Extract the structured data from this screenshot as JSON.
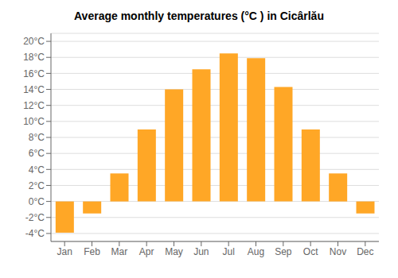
{
  "chart_data": {
    "type": "bar",
    "title": "Average monthly temperatures (°C ) in Cicârlău",
    "categories": [
      "Jan",
      "Feb",
      "Mar",
      "Apr",
      "May",
      "Jun",
      "Jul",
      "Aug",
      "Sep",
      "Oct",
      "Nov",
      "Dec"
    ],
    "values": [
      -3.9,
      -1.5,
      3.5,
      9.0,
      14.0,
      16.5,
      18.5,
      17.9,
      14.3,
      9.0,
      3.5,
      -1.5
    ],
    "color": "#FFA726",
    "ylim": [
      -5,
      21
    ],
    "yticks": [
      {
        "value": -4,
        "label": "-4°C"
      },
      {
        "value": -2,
        "label": "-2°C"
      },
      {
        "value": 0,
        "label": "0°C"
      },
      {
        "value": 2,
        "label": "2°C"
      },
      {
        "value": 4,
        "label": "4°C"
      },
      {
        "value": 6,
        "label": "6°C"
      },
      {
        "value": 8,
        "label": "8°C"
      },
      {
        "value": 10,
        "label": "10°C"
      },
      {
        "value": 12,
        "label": "12°C"
      },
      {
        "value": 14,
        "label": "14°C"
      },
      {
        "value": 16,
        "label": "16°C"
      },
      {
        "value": 18,
        "label": "18°C"
      },
      {
        "value": 20,
        "label": "20°C"
      }
    ],
    "grid": true
  }
}
